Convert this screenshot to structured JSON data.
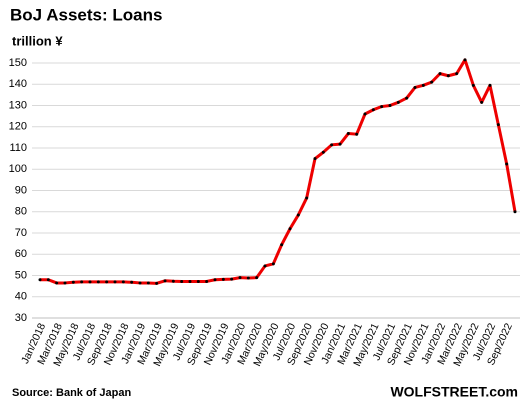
{
  "chart_data": {
    "type": "line",
    "title": "BoJ Assets: Loans",
    "subtitle": "trillion ¥",
    "source": "Source: Bank of Japan",
    "brand": "WOLFSTREET.com",
    "categories": [
      "Jan/2018",
      null,
      "Mar/2018",
      null,
      "May/2018",
      null,
      "Jul/2018",
      null,
      "Sep/2018",
      null,
      "Nov/2018",
      null,
      "Jan/2019",
      null,
      "Mar/2019",
      null,
      "May/2019",
      null,
      "Jul/2019",
      null,
      "Sep/2019",
      null,
      "Nov/2019",
      null,
      "Jan/2020",
      null,
      "Mar/2020",
      null,
      "May/2020",
      null,
      "Jul/2020",
      null,
      "Sep/2020",
      null,
      "Nov/2020",
      null,
      "Jan/2021",
      null,
      "Mar/2021",
      null,
      "May/2021",
      null,
      "Jul/2021",
      null,
      "Sep/2021",
      null,
      "Nov/2021",
      null,
      "Jan/2022",
      null,
      "Mar/2022",
      null,
      "May/2022",
      null,
      "Jul/2022",
      null,
      "Sep/2022",
      null
    ],
    "values": [
      48,
      48,
      46.5,
      46.5,
      46.8,
      47,
      47,
      47,
      47,
      47,
      47,
      46.8,
      46.5,
      46.5,
      46.3,
      47.5,
      47.3,
      47.2,
      47.2,
      47.2,
      47.2,
      48,
      48.2,
      48.3,
      49,
      48.8,
      49,
      54.5,
      55.5,
      64.5,
      72,
      78.5,
      86.5,
      105,
      108,
      111.5,
      111.8,
      116.8,
      116.5,
      126,
      128,
      129.5,
      130,
      131.5,
      133.5,
      138.5,
      139.5,
      141,
      145,
      144,
      145,
      151.5,
      139.5,
      131.5,
      139.5,
      121,
      102.5,
      80
    ],
    "color": "#ee0000",
    "marker_color": "#000000",
    "ylim": [
      30,
      150
    ],
    "yticks": [
      30,
      40,
      50,
      60,
      70,
      80,
      90,
      100,
      110,
      120,
      130,
      140,
      150
    ],
    "grid": true
  }
}
